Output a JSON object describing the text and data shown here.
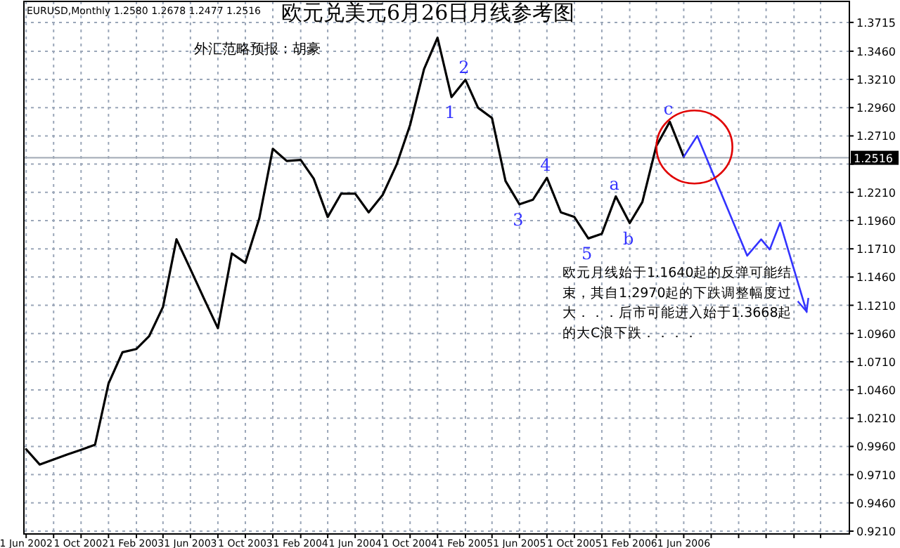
{
  "chart_data": {
    "type": "line",
    "title": "欧元兑美元6月26日月线参考图",
    "annotations": [
      "EURUSD,Monthly  1.2580 1.2678 1.2477 1.2516",
      "外汇范略预报：胡豪",
      "欧元月线始于1.1640起的反弹可能结束，其自1.2970起的下跌调整幅度过大．．．后市可能进入始于1.3668起的大C浪下跌．．．．",
      {
        "text": "1",
        "x": "2005-01",
        "y": 1.3054
      },
      {
        "text": "2",
        "x": "2005-02",
        "y": 1.3207
      },
      {
        "text": "3",
        "x": "2005-06",
        "y": 1.2104
      },
      {
        "text": "4",
        "x": "2005-08",
        "y": 1.2339
      },
      {
        "text": "5",
        "x": "2005-11",
        "y": 1.1802
      },
      {
        "text": "a",
        "x": "2006-01",
        "y": 1.2174
      },
      {
        "text": "b",
        "x": "2006-02",
        "y": 1.1938
      },
      {
        "text": "c",
        "x": "2006-05",
        "y": 1.2835
      }
    ],
    "series": [
      {
        "color": "#000000",
        "x": [
          "2002-06",
          "2002-07",
          "2002-08",
          "2002-09",
          "2002-10",
          "2002-11",
          "2002-12",
          "2003-01",
          "2003-02",
          "2003-03",
          "2003-04",
          "2003-05",
          "2003-06",
          "2003-07",
          "2003-08",
          "2003-09",
          "2003-10",
          "2003-11",
          "2003-12",
          "2004-01",
          "2004-02",
          "2004-03",
          "2004-04",
          "2004-05",
          "2004-06",
          "2004-07",
          "2004-08",
          "2004-09",
          "2004-10",
          "2004-11",
          "2004-12",
          "2005-01",
          "2005-02",
          "2005-03",
          "2005-04",
          "2005-05",
          "2005-06",
          "2005-07",
          "2005-08",
          "2005-09",
          "2005-10",
          "2005-11",
          "2005-12",
          "2006-01",
          "2006-02",
          "2006-03",
          "2006-04",
          "2006-05",
          "2006-06"
        ],
        "values": [
          0.9935,
          0.98,
          0.9845,
          0.989,
          0.993,
          0.9975,
          1.0517,
          1.0794,
          1.0823,
          1.0935,
          1.1195,
          1.1794,
          1.153,
          1.127,
          1.1007,
          1.1669,
          1.1586,
          1.198,
          1.2596,
          1.2488,
          1.2497,
          1.2331,
          1.1992,
          1.2199,
          1.2199,
          1.2033,
          1.2187,
          1.2455,
          1.2806,
          1.3302,
          1.3579,
          1.3054,
          1.3207,
          1.2959,
          1.2868,
          1.2311,
          1.2104,
          1.2145,
          1.2339,
          1.2033,
          1.1992,
          1.1802,
          1.1843,
          1.2174,
          1.1938,
          1.2124,
          1.262,
          1.2835,
          1.2525
        ]
      },
      {
        "color": "#3333ff",
        "x": [
          "2006-06",
          "2006-07",
          "2006-10-20",
          "2006-11-20",
          "2006-12-09",
          "2007-01",
          "2007-03"
        ],
        "values": [
          1.2525,
          1.2711,
          1.1649,
          1.1794,
          1.1704,
          1.194,
          1.1154
        ]
      }
    ],
    "xlim": [
      "2002-05-27",
      "2007-06-04"
    ],
    "xticks": [
      {
        "value": "2002-06-01",
        "label": "1 Jun 2002"
      },
      {
        "value": "2002-08-01",
        "label": null
      },
      {
        "value": "2002-10-01",
        "label": "1 Oct 2002"
      },
      {
        "value": "2002-12-01",
        "label": null
      },
      {
        "value": "2003-02-01",
        "label": "1 Feb 2003"
      },
      {
        "value": "2003-04-01",
        "label": null
      },
      {
        "value": "2003-06-01",
        "label": "1 Jun 2003"
      },
      {
        "value": "2003-08-01",
        "label": null
      },
      {
        "value": "2003-10-01",
        "label": "1 Oct 2003"
      },
      {
        "value": "2003-12-01",
        "label": null
      },
      {
        "value": "2004-02-01",
        "label": "1 Feb 2004"
      },
      {
        "value": "2004-04-01",
        "label": null
      },
      {
        "value": "2004-06-01",
        "label": "1 Jun 2004"
      },
      {
        "value": "2004-08-01",
        "label": null
      },
      {
        "value": "2004-10-01",
        "label": "1 Oct 2004"
      },
      {
        "value": "2004-12-01",
        "label": null
      },
      {
        "value": "2005-02-01",
        "label": "1 Feb 2005"
      },
      {
        "value": "2005-04-01",
        "label": null
      },
      {
        "value": "2005-06-01",
        "label": "1 Jun 2005"
      },
      {
        "value": "2005-08-01",
        "label": null
      },
      {
        "value": "2005-10-01",
        "label": "1 Oct 2005"
      },
      {
        "value": "2005-12-01",
        "label": null
      },
      {
        "value": "2006-02-01",
        "label": "1 Feb 2006"
      },
      {
        "value": "2006-04-01",
        "label": null
      },
      {
        "value": "2006-06-01",
        "label": "1 Jun 2006"
      },
      {
        "value": "2006-08-01",
        "label": null
      },
      {
        "value": "2006-10-01",
        "label": null
      },
      {
        "value": "2006-12-01",
        "label": null
      },
      {
        "value": "2007-02-01",
        "label": null
      },
      {
        "value": "2007-04-01",
        "label": null
      }
    ],
    "ylim": [
      0.9185,
      1.3901
    ],
    "yticks": [
      {
        "value": 0.921,
        "label": "0.9210"
      },
      {
        "value": 0.946,
        "label": "0.9460"
      },
      {
        "value": 0.971,
        "label": "0.9710"
      },
      {
        "value": 0.996,
        "label": "0.9960"
      },
      {
        "value": 1.021,
        "label": "1.0210"
      },
      {
        "value": 1.046,
        "label": "1.0460"
      },
      {
        "value": 1.071,
        "label": "1.0710"
      },
      {
        "value": 1.096,
        "label": "1.0960"
      },
      {
        "value": 1.121,
        "label": "1.1210"
      },
      {
        "value": 1.146,
        "label": "1.1460"
      },
      {
        "value": 1.171,
        "label": "1.1710"
      },
      {
        "value": 1.196,
        "label": "1.1960"
      },
      {
        "value": 1.221,
        "label": "1.2210"
      },
      {
        "value": 1.246,
        "label": null
      },
      {
        "value": 1.271,
        "label": "1.2710"
      },
      {
        "value": 1.296,
        "label": "1.2960"
      },
      {
        "value": 1.321,
        "label": "1.3210"
      },
      {
        "value": 1.346,
        "label": "1.3460"
      },
      {
        "value": 1.3715,
        "label": "1.3715"
      }
    ],
    "ref_lines": [
      {
        "axis": "y",
        "value": 1.2516,
        "label": "1.2516",
        "color": "#a0a8b4"
      }
    ],
    "grid": true,
    "line_style": "solid",
    "marker": "none"
  }
}
